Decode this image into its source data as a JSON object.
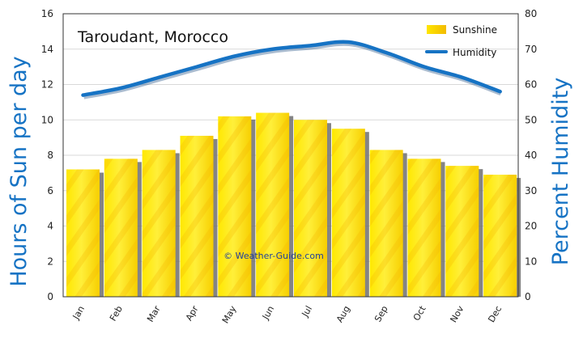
{
  "chart_data": {
    "type": "bar",
    "title": "Taroudant, Morocco",
    "watermark": "© Weather-Guide.com",
    "categories": [
      "Jan",
      "Feb",
      "Mar",
      "Apr",
      "May",
      "Jun",
      "Jul",
      "Aug",
      "Sep",
      "Oct",
      "Nov",
      "Dec"
    ],
    "series": [
      {
        "name": "Sunshine",
        "type": "bar",
        "axis": "left",
        "values": [
          7.2,
          7.8,
          8.3,
          9.1,
          10.2,
          10.4,
          10.0,
          9.5,
          8.3,
          7.8,
          7.4,
          6.9
        ]
      },
      {
        "name": "Humidity",
        "type": "line",
        "axis": "right",
        "values": [
          57,
          59,
          62,
          65,
          68,
          70,
          71,
          72,
          69,
          65,
          62,
          58
        ]
      }
    ],
    "ylabel": "Hours of Sun per day",
    "y2label": "Percent Humidity",
    "ylim": [
      0,
      16
    ],
    "y2lim": [
      0,
      80
    ],
    "yticks": [
      0,
      2,
      4,
      6,
      8,
      10,
      12,
      14,
      16
    ],
    "y2ticks": [
      0,
      10,
      20,
      30,
      40,
      50,
      60,
      70,
      80
    ],
    "grid": true,
    "legend_position": "top-right",
    "colors": {
      "bar": "#ffe600",
      "bar_shade": "#f4c400",
      "line": "#1673c4",
      "axis_title": "#1673c4"
    }
  }
}
